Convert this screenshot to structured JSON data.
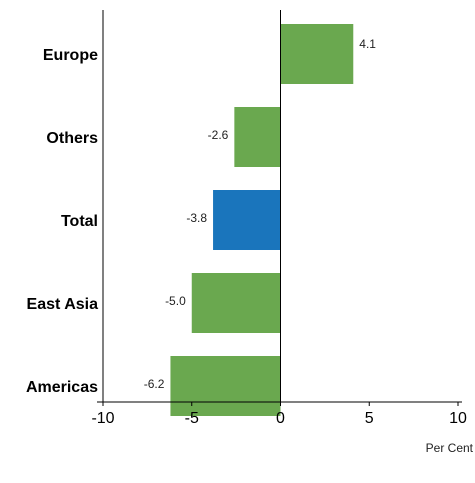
{
  "chart_data": {
    "type": "bar",
    "orientation": "horizontal",
    "categories": [
      "Europe",
      "Others",
      "Total",
      "East Asia",
      "Americas"
    ],
    "values": [
      4.1,
      -2.6,
      -3.8,
      -5.0,
      -6.2
    ],
    "value_labels": [
      "4.1",
      "-2.6",
      "-3.8",
      "-5.0",
      "-6.2"
    ],
    "bar_colors": [
      "#6aa84f",
      "#6aa84f",
      "#1a75bc",
      "#6aa84f",
      "#6aa84f"
    ],
    "xlim": [
      -10,
      10
    ],
    "x_ticks": [
      -10,
      -5,
      0,
      5,
      10
    ],
    "x_tick_labels": [
      "-10",
      "-5",
      "0",
      "5",
      "10"
    ],
    "unit_label": "Per Cent",
    "grid": false
  }
}
